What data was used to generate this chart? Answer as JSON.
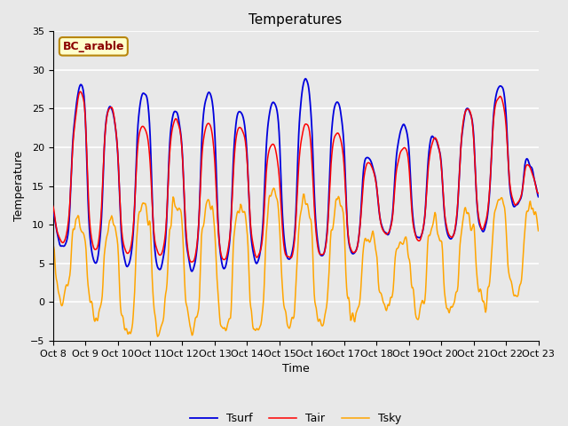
{
  "title": "Temperatures",
  "xlabel": "Time",
  "ylabel": "Temperature",
  "ylim": [
    -5,
    35
  ],
  "legend_label": "BC_arable",
  "series_labels": [
    "Tair",
    "Tsurf",
    "Tsky"
  ],
  "series_colors": [
    "red",
    "#0000dd",
    "orange"
  ],
  "background_color": "#e8e8e8",
  "plot_bg_color": "#e8e8e8",
  "grid_color": "white",
  "title_fontsize": 11,
  "axis_fontsize": 9,
  "tick_fontsize": 8,
  "legend_box_color": "#ffffcc",
  "legend_text_color": "#8b0000",
  "legend_edge_color": "#b8860b",
  "n_points": 720,
  "x_start": 8,
  "x_end": 23,
  "yticks": [
    -5,
    0,
    5,
    10,
    15,
    20,
    25,
    30,
    35
  ],
  "xtick_labels": [
    "Oct 8",
    "Oct 9",
    "Oct 10",
    "Oct 11",
    "Oct 12",
    "Oct 13",
    "Oct 14",
    "Oct 15",
    "Oct 16",
    "Oct 17",
    "Oct 18",
    "Oct 19",
    "Oct 20",
    "Oct 21",
    "Oct 22",
    "Oct 23"
  ],
  "xtick_positions": [
    8,
    9,
    10,
    11,
    12,
    13,
    14,
    15,
    16,
    17,
    18,
    19,
    20,
    21,
    22,
    23
  ]
}
